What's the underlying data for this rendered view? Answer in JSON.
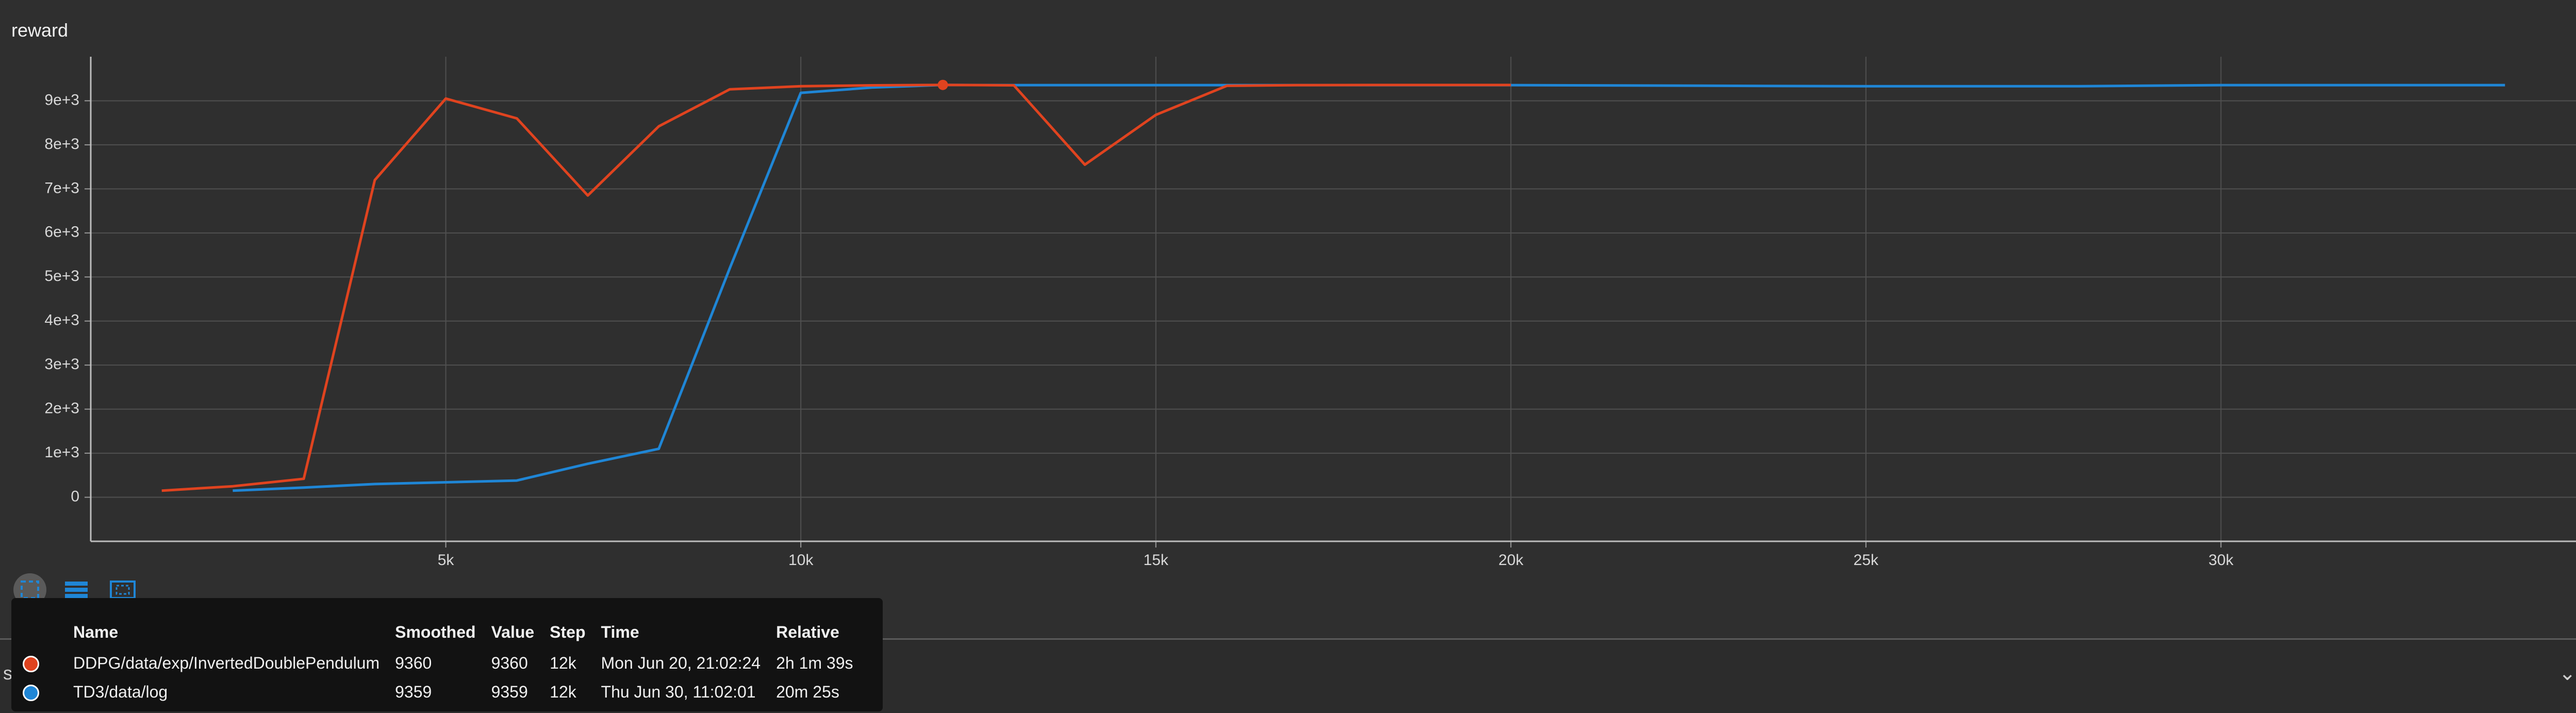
{
  "chart_data": {
    "type": "line",
    "title": "reward",
    "xlabel": "",
    "ylabel": "",
    "xlim": [
      0,
      35000
    ],
    "ylim": [
      -1000,
      10000
    ],
    "x_ticks": [
      {
        "value": 5000,
        "label": "5k"
      },
      {
        "value": 10000,
        "label": "10k"
      },
      {
        "value": 15000,
        "label": "15k"
      },
      {
        "value": 20000,
        "label": "20k"
      },
      {
        "value": 25000,
        "label": "25k"
      },
      {
        "value": 30000,
        "label": "30k"
      }
    ],
    "y_ticks": [
      {
        "value": 9000,
        "label": "9e+3"
      },
      {
        "value": 8000,
        "label": "8e+3"
      },
      {
        "value": 7000,
        "label": "7e+3"
      },
      {
        "value": 6000,
        "label": "6e+3"
      },
      {
        "value": 5000,
        "label": "5e+3"
      },
      {
        "value": 4000,
        "label": "4e+3"
      },
      {
        "value": 3000,
        "label": "3e+3"
      },
      {
        "value": 2000,
        "label": "2e+3"
      },
      {
        "value": 1000,
        "label": "1e+3"
      },
      {
        "value": 0,
        "label": "0"
      }
    ],
    "grid": true,
    "highlight": {
      "x": 12000,
      "y": 9360,
      "series": 0
    },
    "series": [
      {
        "name": "DDPG/data/exp/InvertedDoublePendulum",
        "color": "#e0431f",
        "x": [
          1000,
          2000,
          3000,
          4000,
          5000,
          6000,
          7000,
          8000,
          9000,
          10000,
          11000,
          12000,
          13000,
          14000,
          15000,
          16000,
          17000,
          18000,
          19000,
          20000
        ],
        "y": [
          150,
          250,
          420,
          7200,
          9050,
          8600,
          6850,
          8420,
          9260,
          9330,
          9350,
          9360,
          9350,
          7550,
          8680,
          9340,
          9355,
          9358,
          9358,
          9358
        ]
      },
      {
        "name": "TD3/data/log",
        "color": "#1f86d6",
        "x": [
          2000,
          3000,
          4000,
          5000,
          6000,
          7000,
          8000,
          9000,
          10000,
          11000,
          12000,
          13000,
          16000,
          20000,
          25000,
          28000,
          30000,
          34000
        ],
        "y": [
          150,
          220,
          300,
          340,
          380,
          760,
          1100,
          5200,
          9180,
          9300,
          9359,
          9355,
          9355,
          9355,
          9330,
          9330,
          9355,
          9355
        ]
      }
    ]
  },
  "toolbar": {
    "icons": [
      "fit-domain-icon",
      "toggle-list-icon",
      "zoom-select-icon"
    ]
  },
  "bottom_strip": {
    "label": "st"
  },
  "tooltip": {
    "headers": {
      "name": "Name",
      "smoothed": "Smoothed",
      "value": "Value",
      "step": "Step",
      "time": "Time",
      "relative": "Relative"
    },
    "rows": [
      {
        "color": "#e0431f",
        "name": "DDPG/data/exp/InvertedDoublePendulum",
        "smoothed": "9360",
        "value": "9360",
        "step": "12k",
        "time": "Mon Jun 20, 21:02:24",
        "relative": "2h 1m 39s"
      },
      {
        "color": "#1f86d6",
        "name": "TD3/data/log",
        "smoothed": "9359",
        "value": "9359",
        "step": "12k",
        "time": "Thu Jun 30, 11:02:01",
        "relative": "20m 25s"
      }
    ]
  }
}
